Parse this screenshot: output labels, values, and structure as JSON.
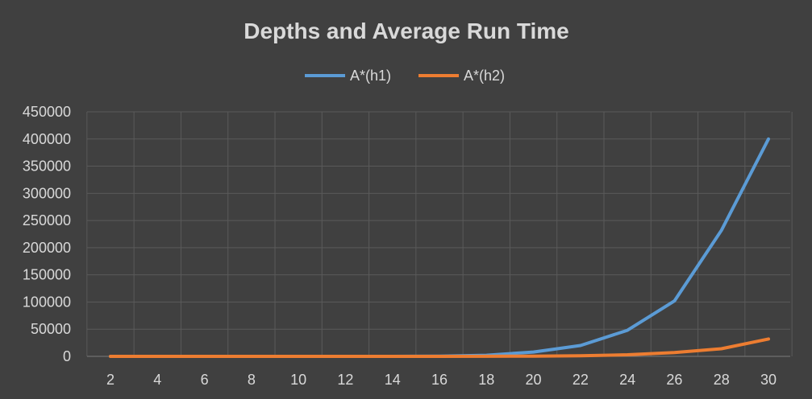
{
  "chart_data": {
    "type": "line",
    "title": "Depths and Average Run Time",
    "xlabel": "",
    "ylabel": "",
    "x": [
      2,
      4,
      6,
      8,
      10,
      12,
      14,
      16,
      18,
      20,
      22,
      24,
      26,
      28,
      30
    ],
    "x_tick_labels": [
      "2",
      "4",
      "6",
      "8",
      "10",
      "12",
      "14",
      "16",
      "18",
      "20",
      "22",
      "24",
      "26",
      "28",
      "30"
    ],
    "y_tick_labels": [
      "0",
      "50000",
      "100000",
      "150000",
      "200000",
      "250000",
      "300000",
      "350000",
      "400000",
      "450000"
    ],
    "y_ticks": [
      0,
      50000,
      100000,
      150000,
      200000,
      250000,
      300000,
      350000,
      400000,
      450000
    ],
    "ylim": [
      0,
      450000
    ],
    "grid": true,
    "legend_position": "top",
    "series": [
      {
        "name": "A*(h1)",
        "color": "#5b9bd5",
        "values": [
          0,
          0,
          0,
          0,
          0,
          0,
          0,
          500,
          2000,
          8000,
          20000,
          48000,
          102000,
          232000,
          400000
        ]
      },
      {
        "name": "A*(h2)",
        "color": "#ed7d31",
        "values": [
          0,
          0,
          0,
          0,
          0,
          0,
          0,
          0,
          200,
          500,
          1000,
          3000,
          7000,
          14000,
          32000
        ]
      }
    ]
  }
}
